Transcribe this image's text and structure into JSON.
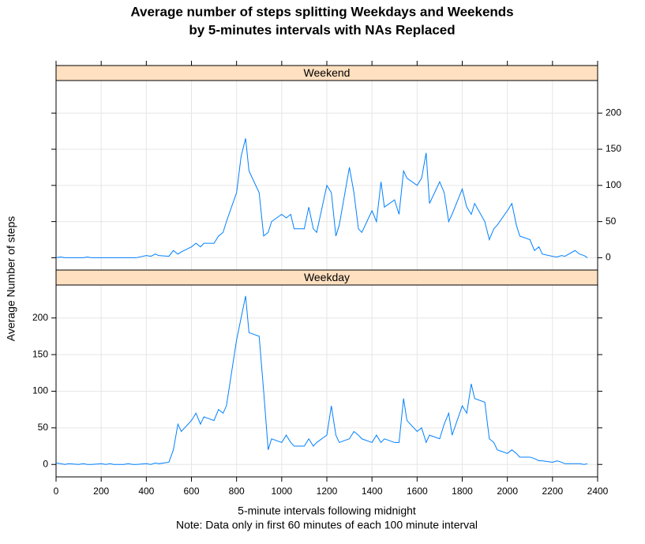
{
  "chart_data": {
    "type": "line",
    "title": [
      "Average number of steps splitting Weekdays and Weekends",
      "by 5-minutes intervals with NAs Replaced"
    ],
    "xlabel": "5-minute intervals following midnight",
    "note": "Note: Data only in first 60 minutes of each 100 minute interval",
    "ylabel": "Average Number of steps",
    "xlim": [
      0,
      2400
    ],
    "xticks": [
      0,
      200,
      400,
      600,
      800,
      1000,
      1200,
      1400,
      1600,
      1800,
      2000,
      2200,
      2400
    ],
    "ylim": [
      -17,
      245
    ],
    "yticks": [
      0,
      50,
      100,
      150,
      200
    ],
    "grid": true,
    "strip_color": "#ffe0c0",
    "x": [
      0,
      20,
      40,
      55,
      100,
      120,
      140,
      155,
      200,
      220,
      240,
      255,
      300,
      320,
      340,
      355,
      400,
      420,
      440,
      455,
      500,
      520,
      540,
      555,
      600,
      620,
      640,
      655,
      700,
      720,
      740,
      755,
      800,
      820,
      840,
      855,
      900,
      920,
      940,
      955,
      1000,
      1020,
      1040,
      1055,
      1100,
      1120,
      1140,
      1155,
      1200,
      1220,
      1240,
      1255,
      1300,
      1320,
      1340,
      1355,
      1400,
      1420,
      1440,
      1455,
      1500,
      1520,
      1540,
      1555,
      1600,
      1620,
      1640,
      1655,
      1700,
      1720,
      1740,
      1755,
      1800,
      1820,
      1840,
      1855,
      1900,
      1920,
      1940,
      1955,
      2000,
      2020,
      2040,
      2055,
      2100,
      2120,
      2140,
      2155,
      2200,
      2220,
      2240,
      2255,
      2300,
      2320,
      2340,
      2355
    ],
    "series": [
      {
        "name": "Weekend",
        "color": "#0080ff",
        "values": [
          0,
          1,
          0,
          0,
          0,
          0,
          1,
          0,
          0,
          0,
          0,
          0,
          0,
          0,
          0,
          0,
          3,
          2,
          5,
          3,
          2,
          10,
          5,
          8,
          15,
          20,
          15,
          20,
          20,
          30,
          35,
          50,
          90,
          140,
          165,
          120,
          90,
          30,
          35,
          50,
          60,
          55,
          60,
          40,
          40,
          70,
          40,
          35,
          100,
          90,
          30,
          45,
          125,
          90,
          40,
          35,
          65,
          50,
          105,
          70,
          80,
          60,
          120,
          110,
          100,
          110,
          145,
          75,
          105,
          90,
          50,
          60,
          95,
          70,
          60,
          75,
          50,
          25,
          40,
          45,
          65,
          75,
          45,
          30,
          25,
          10,
          15,
          5,
          2,
          1,
          3,
          2,
          10,
          5,
          3,
          0
        ]
      },
      {
        "name": "Weekday",
        "color": "#0080ff",
        "values": [
          2,
          1,
          0,
          1,
          0,
          1,
          0,
          0,
          1,
          0,
          1,
          0,
          0,
          1,
          0,
          0,
          1,
          0,
          2,
          1,
          3,
          20,
          55,
          45,
          60,
          70,
          55,
          65,
          60,
          75,
          70,
          80,
          170,
          200,
          230,
          180,
          175,
          100,
          20,
          35,
          30,
          40,
          30,
          25,
          25,
          35,
          25,
          30,
          40,
          80,
          40,
          30,
          35,
          45,
          40,
          35,
          30,
          40,
          30,
          35,
          30,
          30,
          90,
          60,
          45,
          50,
          30,
          40,
          35,
          55,
          70,
          40,
          80,
          70,
          110,
          90,
          85,
          35,
          30,
          20,
          15,
          20,
          15,
          10,
          10,
          8,
          5,
          5,
          3,
          5,
          3,
          1,
          1,
          1,
          0,
          1
        ]
      }
    ]
  }
}
